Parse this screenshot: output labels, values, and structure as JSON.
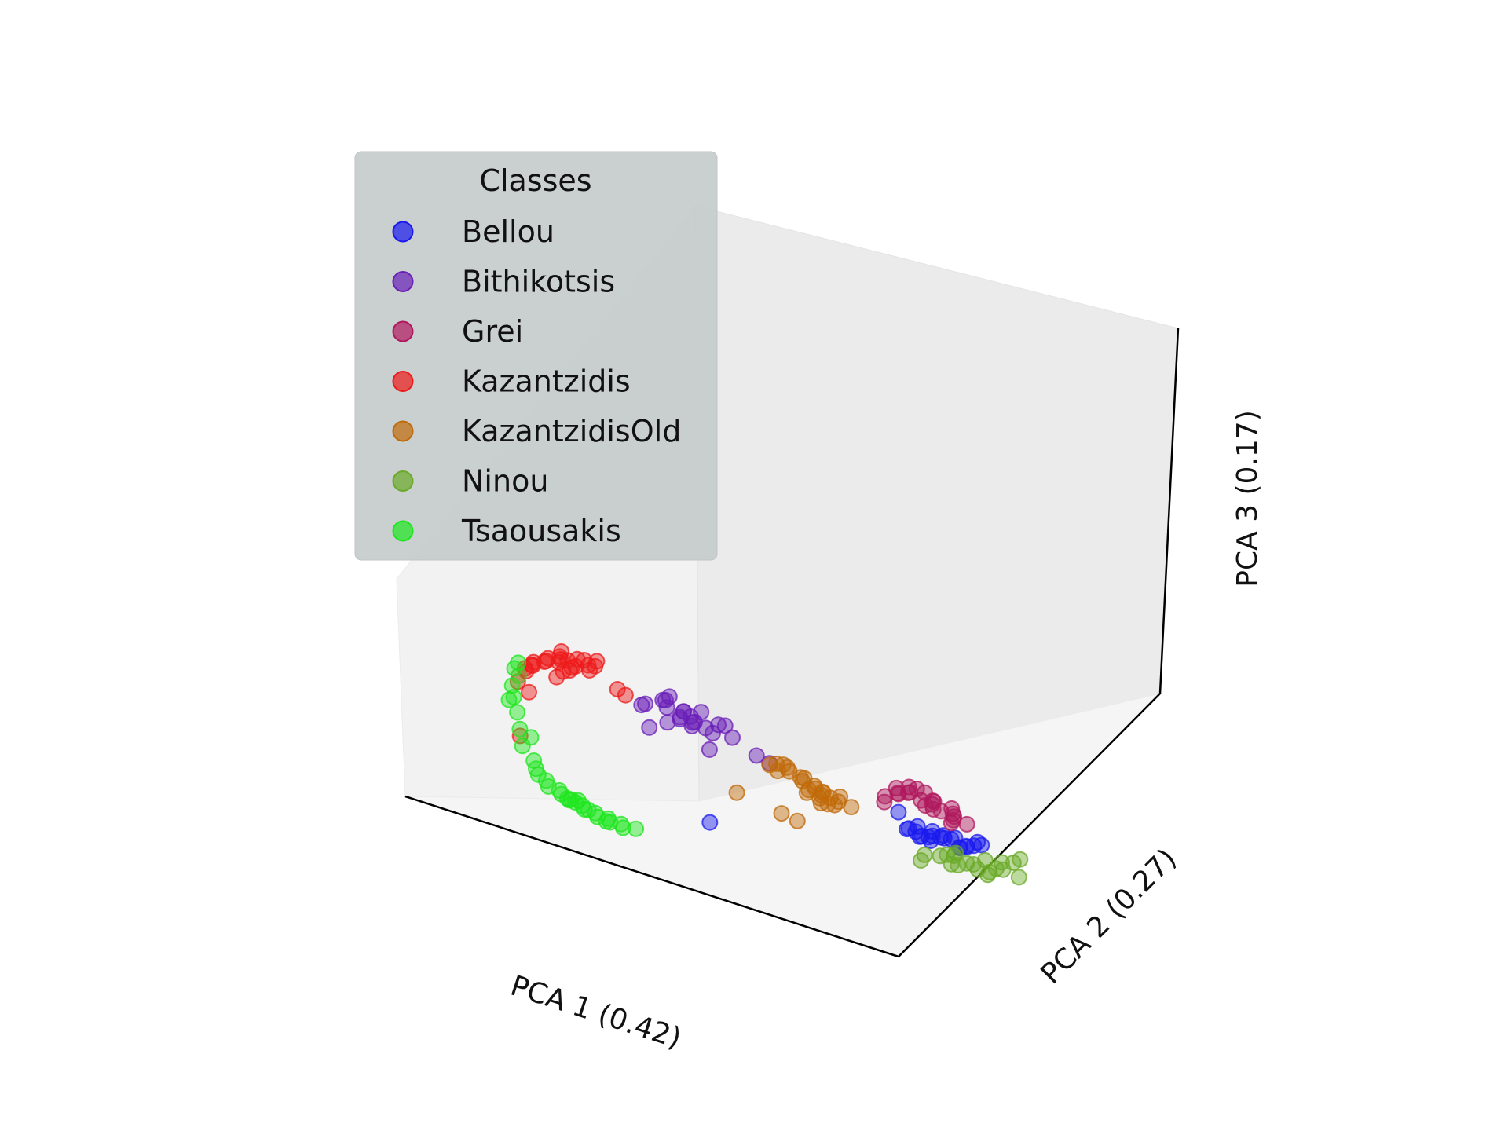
{
  "chart_data": {
    "type": "scatter",
    "projection": "3d",
    "xlabel": "PCA 1 (0.42)",
    "ylabel": "PCA 2 (0.27)",
    "zlabel": "PCA 3 (0.17)",
    "ticks_shown": false,
    "grid": false,
    "legend": {
      "title": "Classes",
      "placement": "upper-left"
    },
    "series": [
      {
        "name": "Bellou",
        "color": "#1a1aee",
        "points": [
          [
            0.7,
            0.55,
            0.38
          ],
          [
            0.72,
            0.56,
            0.36
          ],
          [
            0.74,
            0.55,
            0.37
          ],
          [
            0.76,
            0.57,
            0.38
          ],
          [
            0.78,
            0.56,
            0.39
          ],
          [
            0.8,
            0.58,
            0.37
          ],
          [
            0.71,
            0.57,
            0.35
          ],
          [
            0.73,
            0.58,
            0.39
          ],
          [
            0.75,
            0.54,
            0.36
          ],
          [
            0.77,
            0.55,
            0.4
          ],
          [
            0.79,
            0.57,
            0.36
          ],
          [
            0.81,
            0.56,
            0.38
          ],
          [
            0.69,
            0.56,
            0.37
          ],
          [
            0.83,
            0.58,
            0.4
          ],
          [
            0.72,
            0.54,
            0.38
          ],
          [
            0.74,
            0.59,
            0.37
          ],
          [
            0.76,
            0.53,
            0.39
          ],
          [
            0.78,
            0.59,
            0.35
          ],
          [
            0.8,
            0.54,
            0.41
          ],
          [
            0.82,
            0.57,
            0.39
          ],
          [
            0.7,
            0.58,
            0.39
          ],
          [
            0.84,
            0.55,
            0.42
          ],
          [
            0.68,
            0.55,
            0.44
          ],
          [
            0.31,
            0.52,
            0.12
          ]
        ]
      },
      {
        "name": "Bithikotsis",
        "color": "#6a1fb8",
        "points": [
          [
            0.45,
            0.2,
            0.7
          ],
          [
            0.46,
            0.22,
            0.71
          ],
          [
            0.47,
            0.21,
            0.69
          ],
          [
            0.44,
            0.23,
            0.72
          ],
          [
            0.48,
            0.2,
            0.7
          ],
          [
            0.43,
            0.19,
            0.73
          ],
          [
            0.49,
            0.22,
            0.68
          ],
          [
            0.45,
            0.24,
            0.66
          ],
          [
            0.47,
            0.18,
            0.74
          ],
          [
            0.41,
            0.21,
            0.75
          ],
          [
            0.51,
            0.23,
            0.71
          ],
          [
            0.42,
            0.25,
            0.67
          ],
          [
            0.5,
            0.19,
            0.76
          ],
          [
            0.38,
            0.2,
            0.71
          ],
          [
            0.53,
            0.22,
            0.72
          ],
          [
            0.36,
            0.22,
            0.69
          ],
          [
            0.48,
            0.26,
            0.65
          ],
          [
            0.44,
            0.17,
            0.77
          ],
          [
            0.55,
            0.21,
            0.68
          ],
          [
            0.4,
            0.24,
            0.64
          ],
          [
            0.58,
            0.24,
            0.62
          ],
          [
            0.6,
            0.25,
            0.6
          ],
          [
            0.35,
            0.26,
            0.58
          ],
          [
            0.46,
            0.28,
            0.56
          ],
          [
            0.43,
            0.2,
            0.78
          ]
        ]
      },
      {
        "name": "Grei",
        "color": "#b0185e",
        "points": [
          [
            0.78,
            0.42,
            0.6
          ],
          [
            0.8,
            0.43,
            0.58
          ],
          [
            0.82,
            0.44,
            0.59
          ],
          [
            0.79,
            0.41,
            0.61
          ],
          [
            0.81,
            0.45,
            0.57
          ],
          [
            0.83,
            0.42,
            0.6
          ],
          [
            0.77,
            0.44,
            0.62
          ],
          [
            0.84,
            0.43,
            0.56
          ],
          [
            0.76,
            0.42,
            0.58
          ],
          [
            0.85,
            0.45,
            0.58
          ],
          [
            0.79,
            0.46,
            0.55
          ],
          [
            0.82,
            0.41,
            0.63
          ],
          [
            0.75,
            0.43,
            0.6
          ],
          [
            0.86,
            0.44,
            0.55
          ],
          [
            0.8,
            0.47,
            0.54
          ],
          [
            0.74,
            0.45,
            0.57
          ],
          [
            0.87,
            0.42,
            0.57
          ],
          [
            0.81,
            0.4,
            0.64
          ],
          [
            0.72,
            0.44,
            0.54
          ],
          [
            0.84,
            0.47,
            0.52
          ],
          [
            0.7,
            0.47,
            0.5
          ],
          [
            0.88,
            0.45,
            0.53
          ],
          [
            0.83,
            0.48,
            0.5
          ]
        ]
      },
      {
        "name": "Kazantzidis",
        "color": "#ee1a1a",
        "points": [
          [
            0.22,
            0.14,
            0.8
          ],
          [
            0.24,
            0.15,
            0.81
          ],
          [
            0.26,
            0.14,
            0.82
          ],
          [
            0.23,
            0.16,
            0.79
          ],
          [
            0.25,
            0.13,
            0.83
          ],
          [
            0.27,
            0.15,
            0.8
          ],
          [
            0.21,
            0.15,
            0.78
          ],
          [
            0.28,
            0.14,
            0.84
          ],
          [
            0.2,
            0.16,
            0.77
          ],
          [
            0.29,
            0.16,
            0.82
          ],
          [
            0.19,
            0.14,
            0.76
          ],
          [
            0.3,
            0.13,
            0.85
          ],
          [
            0.18,
            0.15,
            0.74
          ],
          [
            0.31,
            0.15,
            0.83
          ],
          [
            0.17,
            0.17,
            0.73
          ],
          [
            0.24,
            0.18,
            0.76
          ],
          [
            0.26,
            0.12,
            0.86
          ],
          [
            0.16,
            0.16,
            0.71
          ],
          [
            0.22,
            0.19,
            0.74
          ],
          [
            0.32,
            0.14,
            0.86
          ],
          [
            0.15,
            0.18,
            0.69
          ],
          [
            0.2,
            0.2,
            0.7
          ],
          [
            0.33,
            0.19,
            0.74
          ],
          [
            0.34,
            0.2,
            0.72
          ],
          [
            0.12,
            0.2,
            0.62
          ],
          [
            0.13,
            0.22,
            0.58
          ],
          [
            0.09,
            0.25,
            0.35
          ],
          [
            0.25,
            0.17,
            0.78
          ],
          [
            0.28,
            0.18,
            0.79
          ]
        ]
      },
      {
        "name": "KazantzidisOld",
        "color": "#c06a08",
        "points": [
          [
            0.6,
            0.36,
            0.52
          ],
          [
            0.62,
            0.37,
            0.5
          ],
          [
            0.61,
            0.35,
            0.54
          ],
          [
            0.63,
            0.38,
            0.49
          ],
          [
            0.59,
            0.37,
            0.53
          ],
          [
            0.64,
            0.36,
            0.5
          ],
          [
            0.58,
            0.35,
            0.55
          ],
          [
            0.62,
            0.39,
            0.47
          ],
          [
            0.6,
            0.38,
            0.48
          ],
          [
            0.65,
            0.37,
            0.48
          ],
          [
            0.57,
            0.36,
            0.56
          ],
          [
            0.63,
            0.35,
            0.52
          ],
          [
            0.61,
            0.4,
            0.45
          ],
          [
            0.66,
            0.38,
            0.47
          ],
          [
            0.56,
            0.34,
            0.57
          ],
          [
            0.59,
            0.39,
            0.46
          ],
          [
            0.64,
            0.4,
            0.44
          ],
          [
            0.55,
            0.36,
            0.53
          ],
          [
            0.67,
            0.37,
            0.5
          ],
          [
            0.58,
            0.33,
            0.58
          ],
          [
            0.62,
            0.41,
            0.43
          ],
          [
            0.68,
            0.39,
            0.46
          ],
          [
            0.54,
            0.35,
            0.55
          ],
          [
            0.6,
            0.42,
            0.42
          ],
          [
            0.44,
            0.4,
            0.35
          ],
          [
            0.5,
            0.45,
            0.3
          ],
          [
            0.52,
            0.47,
            0.28
          ]
        ]
      },
      {
        "name": "Ninou",
        "color": "#6aaa28",
        "points": [
          [
            0.76,
            0.6,
            0.3
          ],
          [
            0.78,
            0.61,
            0.28
          ],
          [
            0.8,
            0.6,
            0.29
          ],
          [
            0.82,
            0.62,
            0.27
          ],
          [
            0.74,
            0.61,
            0.29
          ],
          [
            0.84,
            0.61,
            0.3
          ],
          [
            0.72,
            0.62,
            0.27
          ],
          [
            0.79,
            0.63,
            0.26
          ],
          [
            0.77,
            0.59,
            0.32
          ],
          [
            0.81,
            0.63,
            0.25
          ],
          [
            0.86,
            0.6,
            0.31
          ],
          [
            0.75,
            0.63,
            0.25
          ],
          [
            0.83,
            0.59,
            0.33
          ],
          [
            0.88,
            0.62,
            0.29
          ],
          [
            0.7,
            0.6,
            0.26
          ],
          [
            0.87,
            0.58,
            0.35
          ],
          [
            0.73,
            0.64,
            0.24
          ],
          [
            0.9,
            0.57,
            0.37
          ],
          [
            0.68,
            0.62,
            0.22
          ],
          [
            0.92,
            0.56,
            0.4
          ],
          [
            0.08,
            0.27,
            0.62
          ]
        ]
      },
      {
        "name": "Tsaousakis",
        "color": "#1ee61e",
        "points": [
          [
            0.14,
            0.3,
            0.12
          ],
          [
            0.15,
            0.31,
            0.1
          ],
          [
            0.16,
            0.3,
            0.11
          ],
          [
            0.17,
            0.32,
            0.09
          ],
          [
            0.13,
            0.31,
            0.13
          ],
          [
            0.18,
            0.31,
            0.08
          ],
          [
            0.12,
            0.29,
            0.14
          ],
          [
            0.19,
            0.33,
            0.07
          ],
          [
            0.15,
            0.33,
            0.09
          ],
          [
            0.2,
            0.32,
            0.06
          ],
          [
            0.11,
            0.3,
            0.16
          ],
          [
            0.21,
            0.34,
            0.06
          ],
          [
            0.14,
            0.32,
            0.1
          ],
          [
            0.22,
            0.33,
            0.05
          ],
          [
            0.1,
            0.29,
            0.18
          ],
          [
            0.17,
            0.34,
            0.07
          ],
          [
            0.23,
            0.35,
            0.05
          ],
          [
            0.09,
            0.3,
            0.2
          ],
          [
            0.18,
            0.29,
            0.12
          ],
          [
            0.24,
            0.34,
            0.04
          ],
          [
            0.08,
            0.31,
            0.23
          ],
          [
            0.2,
            0.35,
            0.04
          ],
          [
            0.26,
            0.35,
            0.05
          ],
          [
            0.07,
            0.29,
            0.29
          ],
          [
            0.06,
            0.3,
            0.36
          ],
          [
            0.05,
            0.31,
            0.43
          ],
          [
            0.05,
            0.3,
            0.5
          ],
          [
            0.06,
            0.28,
            0.56
          ],
          [
            0.09,
            0.24,
            0.66
          ],
          [
            0.11,
            0.22,
            0.7
          ],
          [
            0.04,
            0.3,
            0.48
          ],
          [
            0.07,
            0.32,
            0.33
          ]
        ]
      }
    ]
  }
}
